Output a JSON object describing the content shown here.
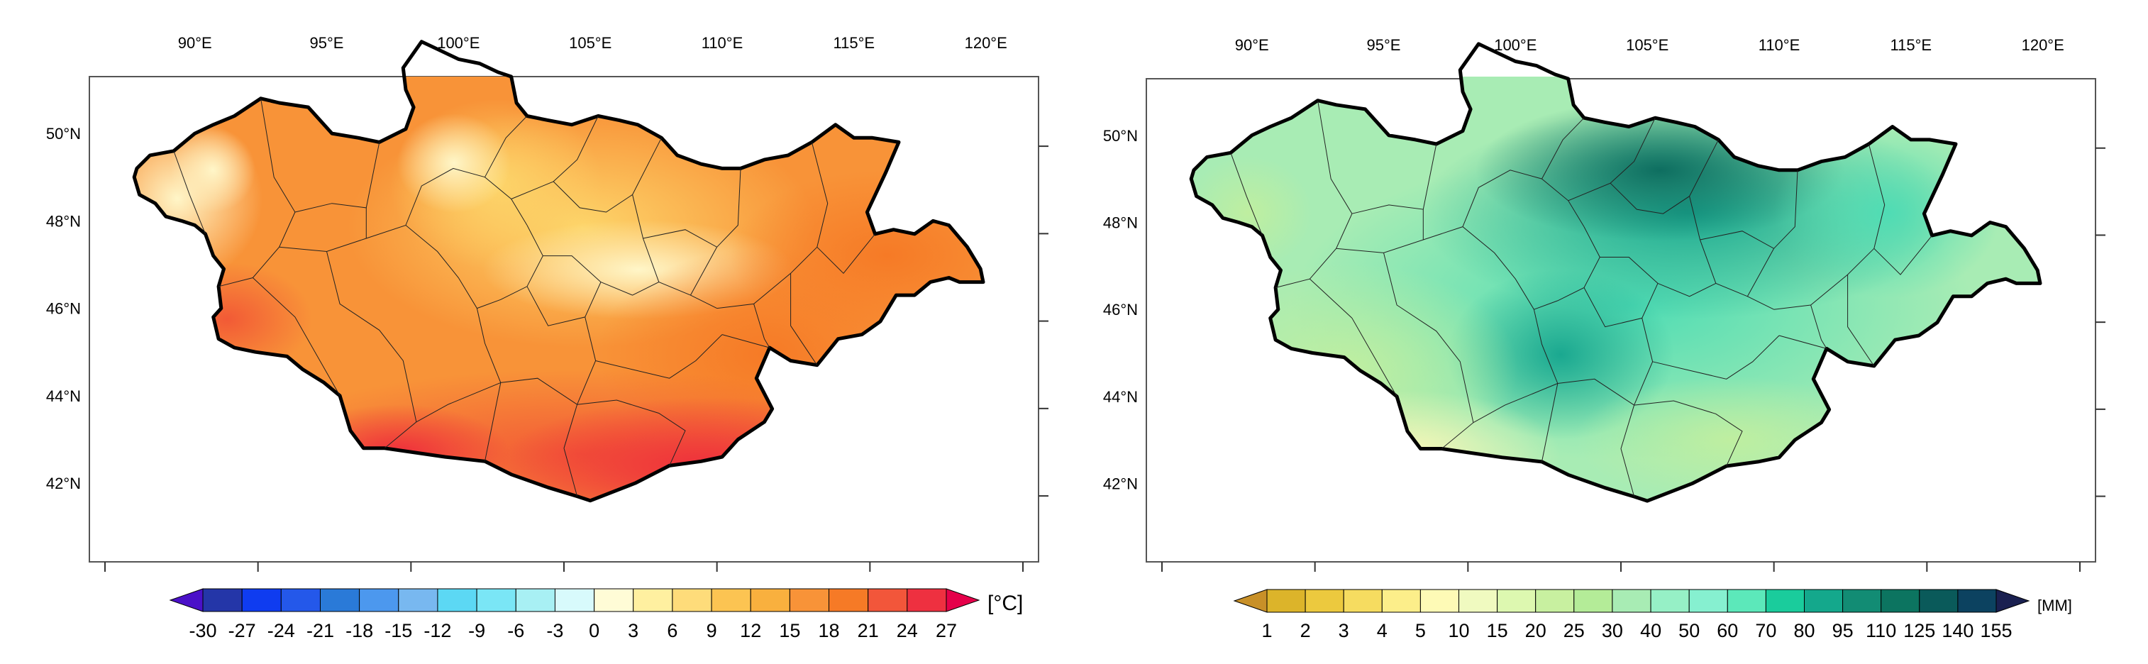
{
  "panels": [
    {
      "id": "temperature",
      "lon_labels": [
        "90°E",
        "95°E",
        "100°E",
        "105°E",
        "110°E",
        "115°E",
        "120°E"
      ],
      "lon_values": [
        90,
        95,
        100,
        105,
        110,
        115,
        120
      ],
      "lat_labels": [
        "50°N",
        "48°N",
        "46°N",
        "44°N",
        "42°N"
      ],
      "lat_values": [
        50,
        48,
        46,
        44,
        42
      ],
      "extent": {
        "lon_min": 86,
        "lon_max": 122,
        "lat_min": 40.2,
        "lat_max": 51.3
      },
      "colorbar": {
        "unit": "[°C]",
        "tick_labels": [
          "-30",
          "-27",
          "-24",
          "-21",
          "-18",
          "-15",
          "-12",
          "-9",
          "-6",
          "-3",
          "0",
          "3",
          "6",
          "9",
          "12",
          "15",
          "18",
          "21",
          "24",
          "27"
        ],
        "colors": [
          "#2436a8",
          "#0f3cf0",
          "#2458ea",
          "#2a7ad8",
          "#4c98ee",
          "#78b8f0",
          "#5cd8f4",
          "#7ae6f6",
          "#a8f0f4",
          "#d8fafc",
          "#fffcd6",
          "#fff0a0",
          "#fedc7a",
          "#fcc452",
          "#f9b03e",
          "#f89338",
          "#f67a26",
          "#f2563a",
          "#ee3040"
        ],
        "low_arrow": "#4a10c8",
        "high_arrow": "#e5004a"
      }
    },
    {
      "id": "precipitation",
      "lon_labels": [
        "90°E",
        "95°E",
        "100°E",
        "105°E",
        "110°E",
        "115°E",
        "120°E"
      ],
      "lon_values": [
        90,
        95,
        100,
        105,
        110,
        115,
        120
      ],
      "lat_labels": [
        "50°N",
        "48°N",
        "46°N",
        "44°N",
        "42°N"
      ],
      "lat_values": [
        50,
        48,
        46,
        44,
        42
      ],
      "extent": {
        "lon_min": 86,
        "lon_max": 122,
        "lat_min": 40.2,
        "lat_max": 51.3
      },
      "colorbar": {
        "unit": "[MM]",
        "tick_labels": [
          "1",
          "2",
          "3",
          "4",
          "5",
          "10",
          "15",
          "20",
          "25",
          "30",
          "40",
          "50",
          "60",
          "70",
          "80",
          "95",
          "110",
          "125",
          "140",
          "155"
        ],
        "colors": [
          "#dcb42a",
          "#ecc93e",
          "#f6dc60",
          "#fcee8a",
          "#fefab6",
          "#f0fac0",
          "#ddf8b0",
          "#c8f0a0",
          "#b4ec98",
          "#a8ecb4",
          "#96f0c6",
          "#86f0d0",
          "#5ce8ba",
          "#1acc9c",
          "#14a88c",
          "#128c74",
          "#0c7460",
          "#0a5a5a",
          "#0c4260"
        ],
        "low_arrow": "#c89028",
        "high_arrow": "#1a2050"
      }
    }
  ]
}
